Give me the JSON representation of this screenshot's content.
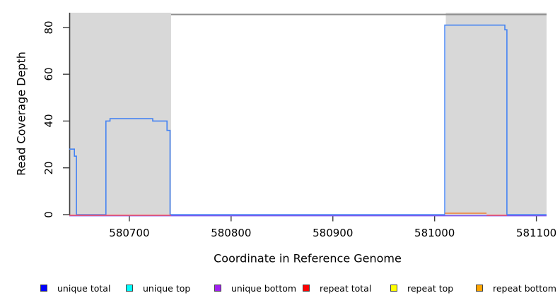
{
  "chart_data": {
    "type": "line",
    "title": "",
    "xlabel": "Coordinate in Reference Genome",
    "ylabel": "Read Coverage Depth",
    "xlim": [
      580641,
      581110
    ],
    "ylim": [
      0,
      86
    ],
    "x_ticks": [
      580700,
      580800,
      580900,
      581000,
      581100
    ],
    "y_ticks": [
      0,
      20,
      40,
      60,
      80
    ],
    "grid": false,
    "legend_position": "bottom",
    "shaded_regions": [
      {
        "start": 580641,
        "end": 580741,
        "color": "#d8d8d8"
      },
      {
        "start": 581011,
        "end": 581110,
        "color": "#d8d8d8"
      }
    ],
    "series": [
      {
        "name": "repeat top",
        "color": "#FFFF00",
        "segments": []
      },
      {
        "name": "unique top",
        "color": "#00FFFF",
        "segments": []
      },
      {
        "name": "unique bottom",
        "color": "#A020F0",
        "line_color": "#7C52F0",
        "segments": [
          [
            [
              580641,
              0
            ],
            [
              581110,
              0
            ]
          ]
        ]
      },
      {
        "name": "unique total",
        "color": "#0000FF",
        "line_color": "#4583F2",
        "segments": [
          [
            [
              580641,
              28
            ],
            [
              580646,
              28
            ],
            [
              580646,
              25
            ],
            [
              580648,
              25
            ],
            [
              580648,
              0
            ],
            [
              580677,
              0
            ],
            [
              580677,
              40
            ],
            [
              580681,
              40
            ],
            [
              580681,
              41
            ],
            [
              580723,
              41
            ],
            [
              580723,
              40
            ],
            [
              580737,
              40
            ],
            [
              580737,
              36
            ],
            [
              580740,
              36
            ],
            [
              580740,
              0
            ],
            [
              581010,
              0
            ],
            [
              581010,
              81
            ],
            [
              581069,
              81
            ],
            [
              581069,
              79
            ],
            [
              581071,
              79
            ],
            [
              581071,
              0
            ],
            [
              581110,
              0
            ]
          ]
        ]
      },
      {
        "name": "repeat total",
        "color": "#FF0000",
        "line_color": "#FF5A5A",
        "segments": [
          [
            [
              580641,
              0
            ],
            [
              580741,
              0
            ]
          ],
          [
            [
              581051,
              0
            ],
            [
              581071,
              0
            ]
          ]
        ]
      },
      {
        "name": "repeat bottom",
        "color": "#FFA500",
        "line_color": "#F08030",
        "segments": [
          [
            [
              581010,
              0.5
            ],
            [
              581051,
              0.5
            ]
          ]
        ]
      }
    ],
    "legend": [
      {
        "label": "unique total",
        "color": "#0000FF"
      },
      {
        "label": "unique top",
        "color": "#00FFFF"
      },
      {
        "label": "unique bottom",
        "color": "#A020F0"
      },
      {
        "label": "repeat total",
        "color": "#FF0000"
      },
      {
        "label": "repeat top",
        "color": "#FFFF00"
      },
      {
        "label": "repeat bottom",
        "color": "#FFA500"
      }
    ]
  }
}
